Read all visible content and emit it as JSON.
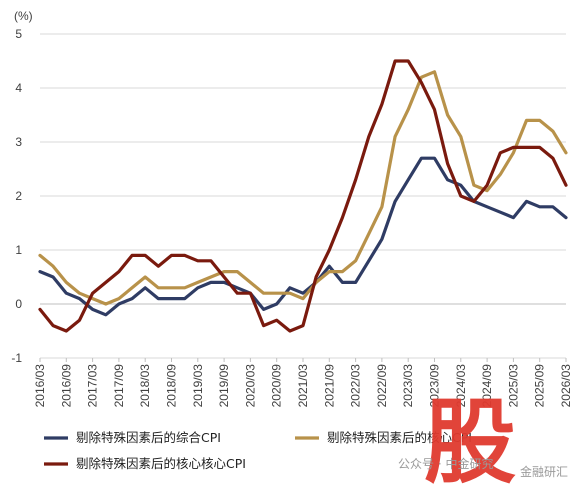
{
  "chart_data": {
    "type": "line",
    "unit_label": "(%)",
    "ylim": [
      -1,
      5
    ],
    "yticks": [
      "5",
      "4",
      "3",
      "2",
      "1",
      "0",
      "-1"
    ],
    "x": [
      "2016/03",
      "2016/06",
      "2016/09",
      "2016/12",
      "2017/03",
      "2017/06",
      "2017/09",
      "2017/12",
      "2018/03",
      "2018/06",
      "2018/09",
      "2018/12",
      "2019/03",
      "2019/06",
      "2019/09",
      "2019/12",
      "2020/03",
      "2020/06",
      "2020/09",
      "2020/12",
      "2021/03",
      "2021/06",
      "2021/09",
      "2021/12",
      "2022/03",
      "2022/06",
      "2022/09",
      "2022/12",
      "2023/03",
      "2023/06",
      "2023/09",
      "2023/12",
      "2024/03",
      "2024/06",
      "2024/09",
      "2024/12",
      "2025/03",
      "2025/06",
      "2025/09",
      "2025/12",
      "2026/03"
    ],
    "xtick_labels": [
      "2016/03",
      "2016/09",
      "2017/03",
      "2017/09",
      "2018/03",
      "2018/09",
      "2019/03",
      "2019/09",
      "2020/03",
      "2020/09",
      "2021/03",
      "2021/09",
      "2022/03",
      "2022/09",
      "2023/03",
      "2023/09",
      "2024/03",
      "2024/09",
      "2025/03",
      "2025/09",
      "2026/03"
    ],
    "grid": "horizontal",
    "series": [
      {
        "name": "剔除特殊因素后的综合CPI",
        "color": "#2f3c64",
        "values": [
          0.6,
          0.5,
          0.2,
          0.1,
          -0.1,
          -0.2,
          0.0,
          0.1,
          0.3,
          0.1,
          0.1,
          0.1,
          0.3,
          0.4,
          0.4,
          0.3,
          0.2,
          -0.1,
          0.0,
          0.3,
          0.2,
          0.4,
          0.7,
          0.4,
          0.4,
          0.8,
          1.2,
          1.9,
          2.3,
          2.7,
          2.7,
          2.3,
          2.2,
          1.9,
          1.8,
          1.7,
          1.6,
          1.9,
          1.8,
          1.8,
          1.6
        ]
      },
      {
        "name": "剔除特殊因素后的核心CPI",
        "color": "#b8924a",
        "values": [
          0.9,
          0.7,
          0.4,
          0.2,
          0.1,
          0.0,
          0.1,
          0.3,
          0.5,
          0.3,
          0.3,
          0.3,
          0.4,
          0.5,
          0.6,
          0.6,
          0.4,
          0.2,
          0.2,
          0.2,
          0.1,
          0.4,
          0.6,
          0.6,
          0.8,
          1.3,
          1.8,
          3.1,
          3.6,
          4.2,
          4.3,
          3.5,
          3.1,
          2.2,
          2.1,
          2.4,
          2.8,
          3.4,
          3.4,
          3.2,
          2.8
        ]
      },
      {
        "name": "剔除特殊因素后的核心核心CPI",
        "color": "#7a1a0e",
        "values": [
          -0.1,
          -0.4,
          -0.5,
          -0.3,
          0.2,
          0.4,
          0.6,
          0.9,
          0.9,
          0.7,
          0.9,
          0.9,
          0.8,
          0.8,
          0.5,
          0.2,
          0.2,
          -0.4,
          -0.3,
          -0.5,
          -0.4,
          0.5,
          1.0,
          1.6,
          2.3,
          3.1,
          3.7,
          4.5,
          4.5,
          4.1,
          3.6,
          2.6,
          2.0,
          1.9,
          2.2,
          2.8,
          2.9,
          2.9,
          2.9,
          2.7,
          2.2
        ]
      }
    ]
  },
  "watermark": {
    "glyph": "股",
    "account": "公众号 · 中金研究",
    "brand": "金融研汇"
  }
}
